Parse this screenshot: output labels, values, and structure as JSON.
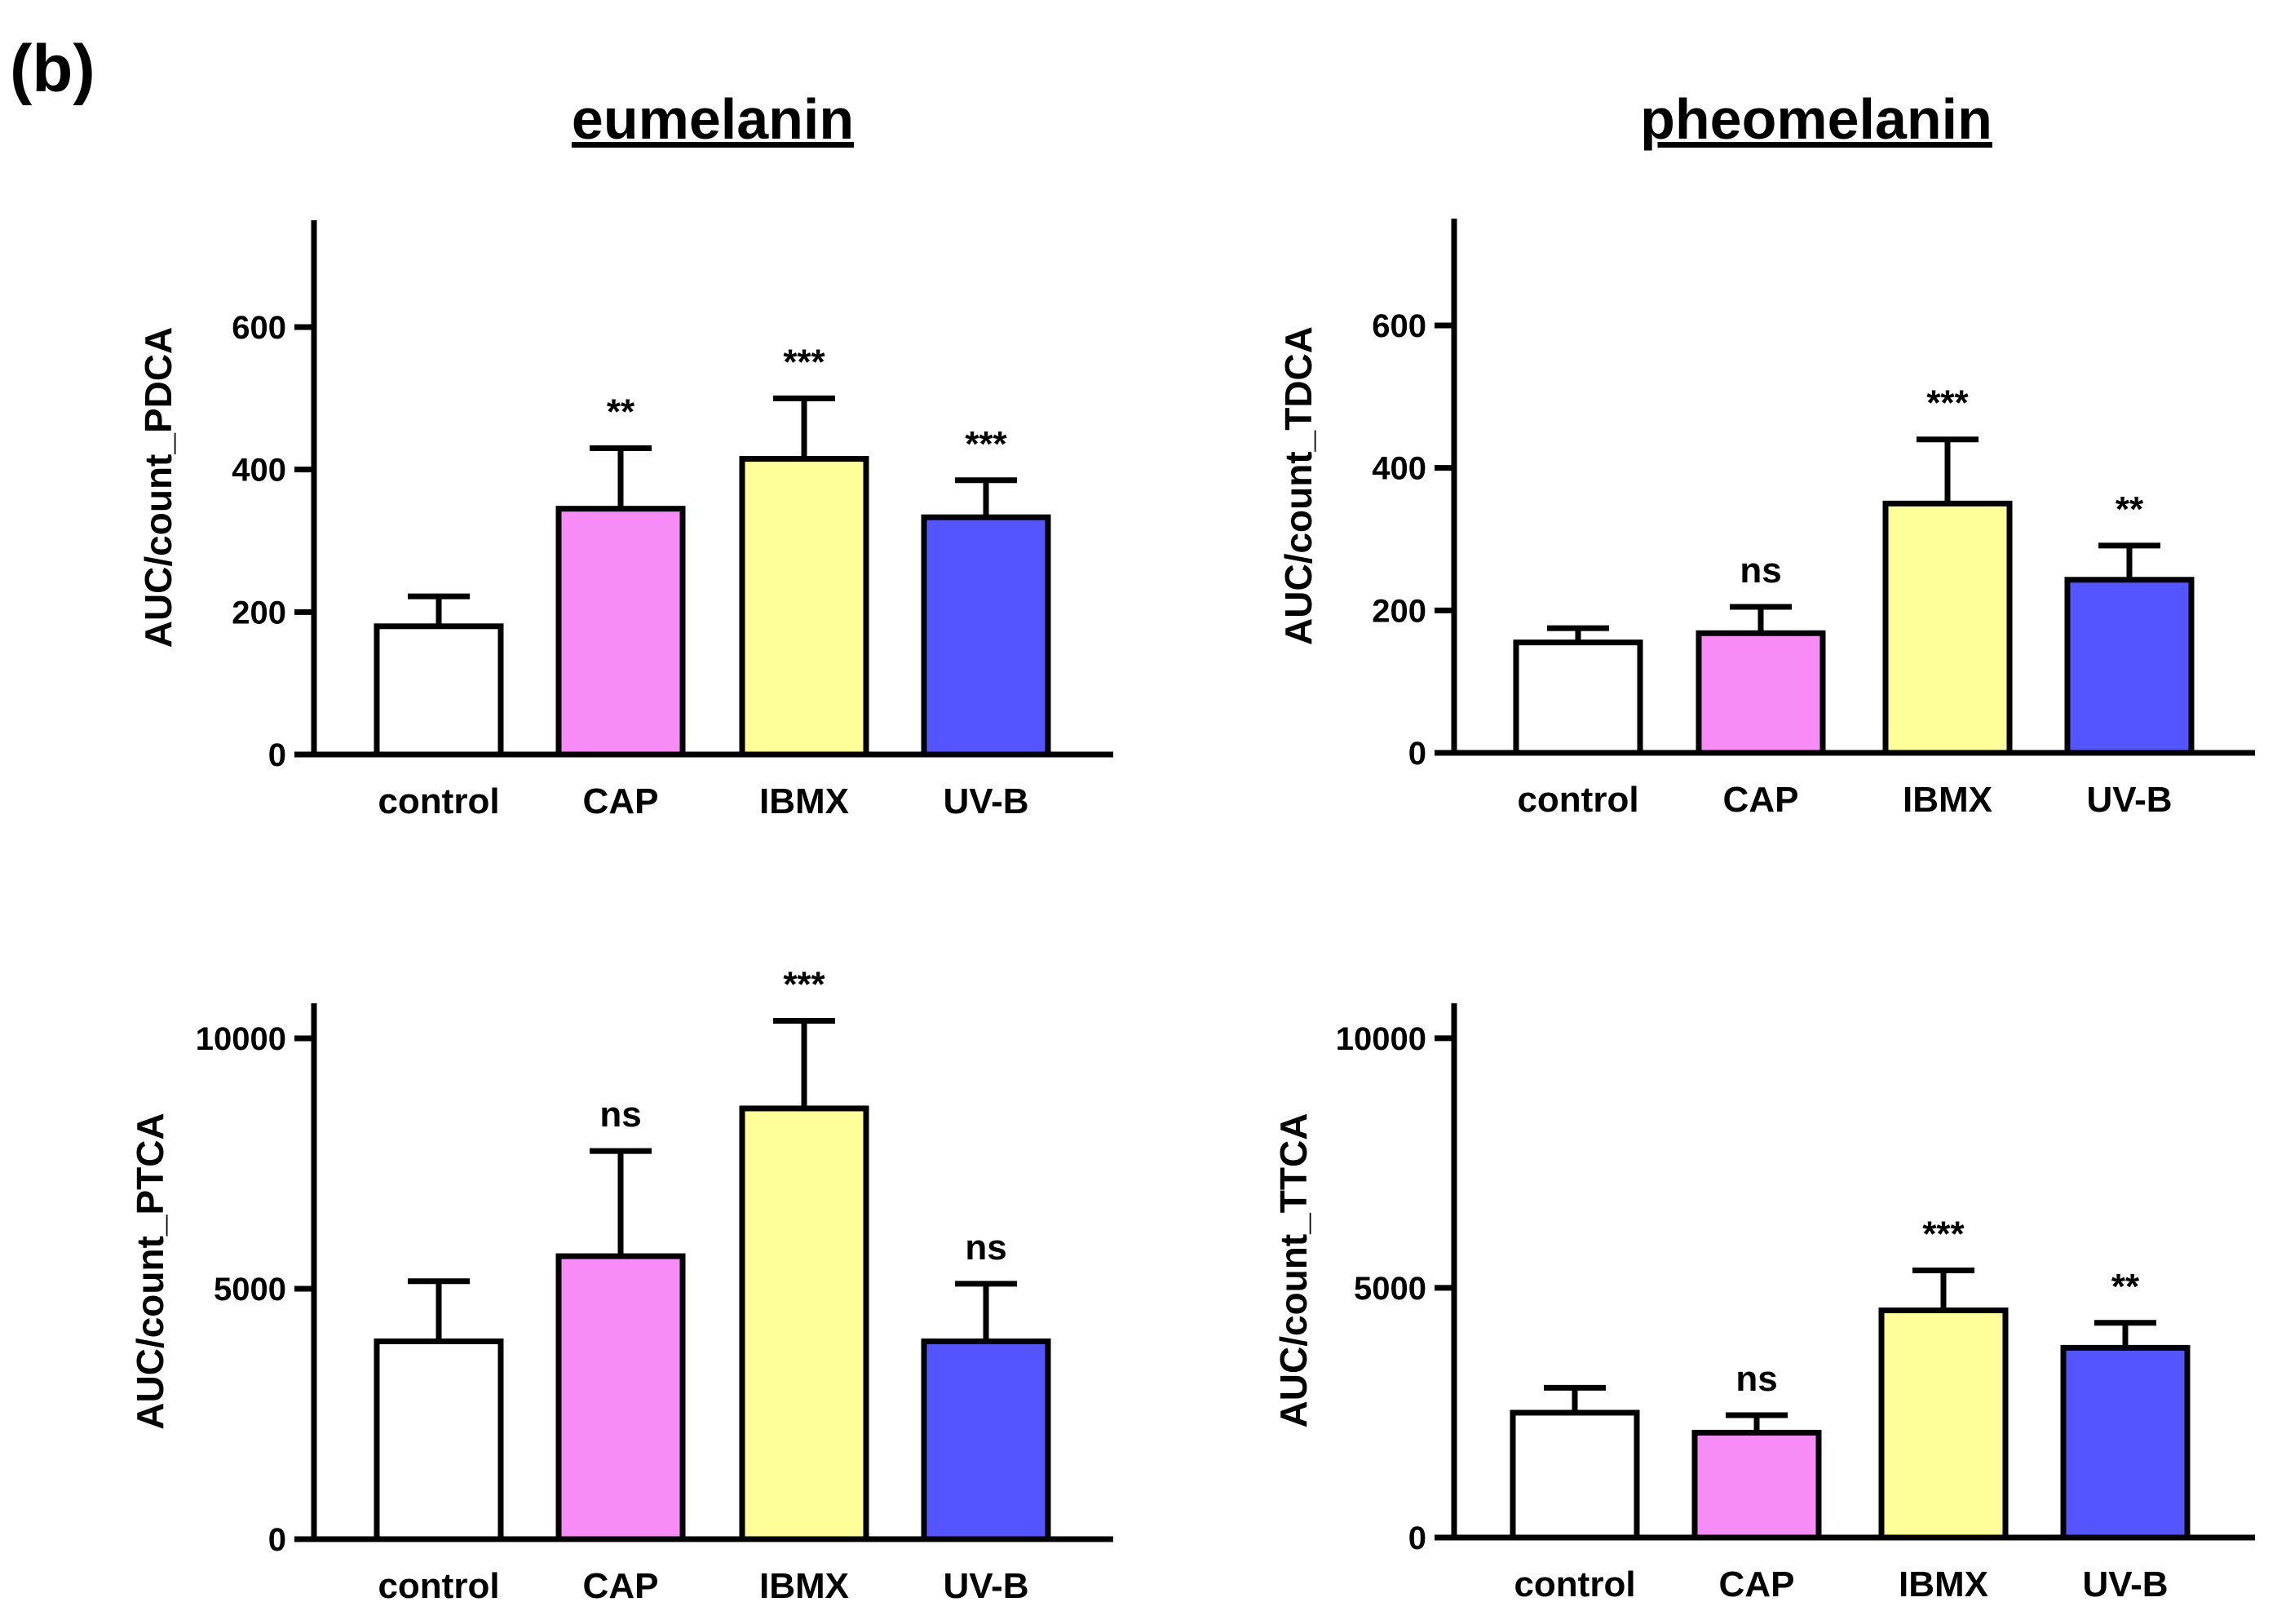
{
  "figure": {
    "panel_label": "(b)",
    "columns": [
      "eumelanin",
      "pheomelanin"
    ]
  },
  "colors": {
    "control": "#ffffff",
    "CAP": "#f78cf7",
    "IBMX": "#ffff99",
    "UV-B": "#5555ff",
    "stroke": "#000000"
  },
  "chart_data": [
    {
      "type": "bar",
      "title": "eumelanin",
      "xlabel": "",
      "ylabel": "AUC/count_PDCA",
      "categories": [
        "control",
        "CAP",
        "IBMX",
        "UV-B"
      ],
      "values": [
        180,
        345,
        415,
        333
      ],
      "errors": [
        42,
        85,
        85,
        52
      ],
      "significance": [
        "",
        "**",
        "***",
        "***"
      ],
      "ylim": [
        0,
        750
      ],
      "yticks": [
        0,
        200,
        400,
        600
      ],
      "ytick_labels": [
        "0",
        "200",
        "400",
        "600"
      ]
    },
    {
      "type": "bar",
      "title": "pheomelanin",
      "xlabel": "",
      "ylabel": "AUC/count_TDCA",
      "categories": [
        "control",
        "CAP",
        "IBMX",
        "UV-B"
      ],
      "values": [
        155,
        168,
        350,
        243
      ],
      "errors": [
        20,
        37,
        90,
        48
      ],
      "significance": [
        "",
        "ns",
        "***",
        "**"
      ],
      "ylim": [
        0,
        750
      ],
      "yticks": [
        0,
        200,
        400,
        600
      ],
      "ytick_labels": [
        "0",
        "200",
        "400",
        "600"
      ]
    },
    {
      "type": "bar",
      "title": "",
      "xlabel": "",
      "ylabel": "AUC/count_PTCA",
      "categories": [
        "control",
        "CAP",
        "IBMX",
        "UV-B"
      ],
      "values": [
        3950,
        5650,
        8600,
        3950
      ],
      "errors": [
        1200,
        2100,
        1750,
        1150
      ],
      "significance": [
        "",
        "ns",
        "***",
        "ns"
      ],
      "ylim": [
        0,
        10700
      ],
      "yticks": [
        0,
        5000,
        10000
      ],
      "ytick_labels": [
        "0",
        "5000",
        "10000"
      ]
    },
    {
      "type": "bar",
      "title": "",
      "xlabel": "",
      "ylabel": "AUC/count_TTCA",
      "categories": [
        "control",
        "CAP",
        "IBMX",
        "UV-B"
      ],
      "values": [
        2500,
        2100,
        4550,
        3800
      ],
      "errors": [
        500,
        350,
        800,
        500
      ],
      "significance": [
        "",
        "ns",
        "***",
        "**"
      ],
      "ylim": [
        0,
        10700
      ],
      "yticks": [
        0,
        5000,
        10000
      ],
      "ytick_labels": [
        "0",
        "5000",
        "10000"
      ]
    }
  ]
}
